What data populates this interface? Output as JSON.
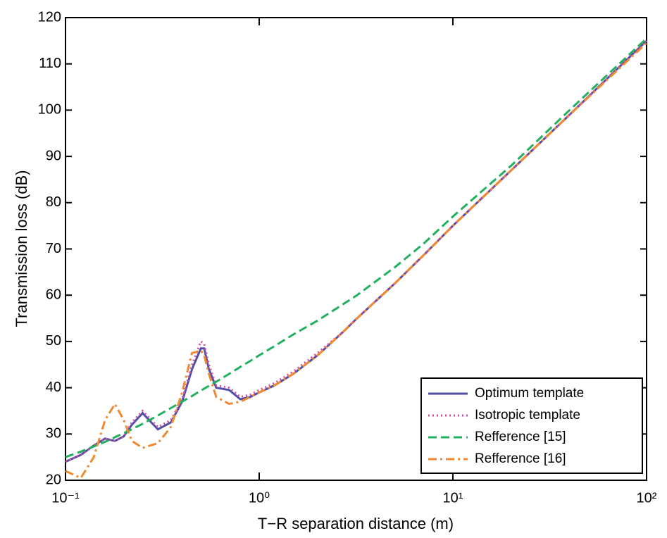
{
  "chart_data": {
    "type": "line",
    "x_label": "T−R separation distance (m)",
    "y_label": "Transmission loss (dB)",
    "xscale": "log",
    "xlim": [
      0.1,
      100
    ],
    "xticks": [
      {
        "value": 0.1,
        "label": "10⁻¹"
      },
      {
        "value": 1,
        "label": "10⁰"
      },
      {
        "value": 10,
        "label": "10¹"
      },
      {
        "value": 100,
        "label": "10²"
      }
    ],
    "ylim": [
      20,
      120
    ],
    "yticks": [
      20,
      30,
      40,
      50,
      60,
      70,
      80,
      90,
      100,
      110,
      120
    ],
    "legend": "lower right",
    "x": [
      0.1,
      0.12,
      0.14,
      0.16,
      0.18,
      0.2,
      0.22,
      0.25,
      0.3,
      0.35,
      0.4,
      0.45,
      0.5,
      0.52,
      0.55,
      0.6,
      0.7,
      0.8,
      0.9,
      1,
      1.2,
      1.5,
      2,
      2.7,
      3.2,
      5,
      7,
      10,
      20,
      40,
      100
    ],
    "series": [
      {
        "name": "Optimum template",
        "color": "#4f4fa8",
        "style": "solid",
        "values": [
          24,
          25.5,
          27.5,
          29,
          28.5,
          29.5,
          32,
          34.5,
          31,
          32.5,
          37,
          44,
          48.5,
          48.5,
          44,
          40,
          39.5,
          37.5,
          38,
          39,
          40.5,
          43,
          47,
          52,
          55,
          62.5,
          68.5,
          75,
          87,
          99,
          115
        ]
      },
      {
        "name": "Isotropic template",
        "color": "#d04fa0",
        "style": "dotted",
        "values": [
          24,
          25.5,
          27.5,
          29,
          28.5,
          29.5,
          32.5,
          35,
          31.5,
          33,
          37.5,
          45,
          50,
          49.5,
          45,
          40.5,
          40,
          38,
          38.5,
          39.5,
          41,
          43.5,
          47.5,
          52,
          55,
          62.5,
          68.5,
          75,
          87,
          99,
          115
        ]
      },
      {
        "name": "Refference [15]",
        "color": "#22b060",
        "style": "dashed",
        "values": [
          25,
          26.2,
          27.3,
          28.3,
          29.3,
          30.2,
          31,
          32.2,
          34,
          35.6,
          37,
          38.2,
          39.4,
          39.8,
          40.4,
          41.3,
          43,
          44.5,
          45.8,
          47,
          49,
          51.5,
          54.5,
          58,
          60,
          66,
          71,
          77,
          88,
          100,
          115.5
        ]
      },
      {
        "name": "Refference [16]",
        "color": "#f08a30",
        "style": "dashdot",
        "values": [
          22,
          20.5,
          25,
          33,
          36.5,
          33,
          28.5,
          27,
          28,
          31.5,
          39,
          47.5,
          48,
          47,
          43,
          38,
          36.5,
          37,
          38,
          39,
          40.5,
          43,
          47,
          52,
          55,
          62.5,
          68.5,
          75,
          87,
          99,
          114.5
        ]
      }
    ]
  }
}
